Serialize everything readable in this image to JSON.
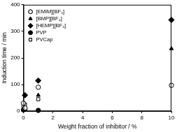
{
  "chart_data": {
    "type": "scatter",
    "x_label": "Weight fraction of inhibitor / %",
    "y_label": "Induction time / min",
    "xlim": [
      0,
      10
    ],
    "xticks": [
      0,
      2,
      4,
      6,
      8,
      10
    ],
    "ylim": [
      0,
      400
    ],
    "yticks": [
      0,
      100,
      200,
      300,
      400
    ],
    "grid": false,
    "legend": "upper left",
    "series": [
      {
        "name": "[EMIM][BF₄]",
        "color": "#000000",
        "marker": "open_circle",
        "x": [
          0,
          0.1,
          1,
          10
        ],
        "values": [
          30,
          12,
          90,
          97
        ]
      },
      {
        "name": "[BMP][BF₄]",
        "color": "#000000",
        "marker": "triangle",
        "x": [
          0.1,
          1,
          10
        ],
        "values": [
          10,
          60,
          235
        ]
      },
      {
        "name": "[HEMP][BF₄]",
        "color": "#000000",
        "marker": "diamond",
        "x": [
          0.1,
          1,
          10
        ],
        "values": [
          60,
          115,
          343
        ]
      },
      {
        "name": "PVP",
        "color": "#000000",
        "marker": "circle",
        "x": [
          0,
          0.1,
          1
        ],
        "values": [
          5,
          8,
          3
        ]
      },
      {
        "name": "PVCap",
        "color": "#000000",
        "marker": "open_square",
        "x": [
          0,
          0.1,
          1
        ],
        "values": [
          20,
          25,
          45
        ]
      }
    ]
  }
}
